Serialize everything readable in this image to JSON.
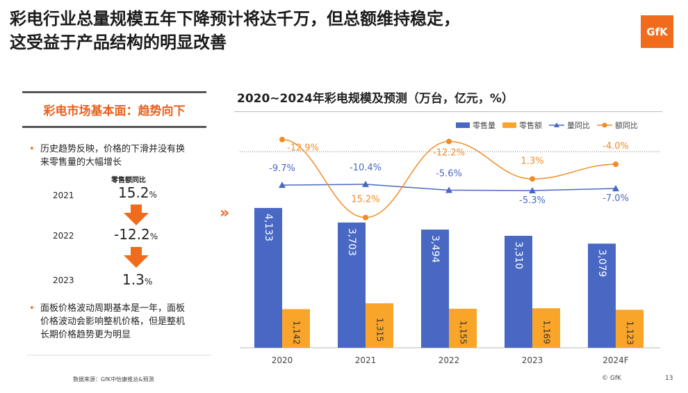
{
  "title": {
    "line1": "彩电行业总量规模五年下降预计将达千万，但总额维持稳定，",
    "line2": "这受益于产品结构的明显改善"
  },
  "logo": "GfK",
  "panel": {
    "title": "彩电市场基本面：趋势向下",
    "bullet1_line1": "历史趋势反映，价格的下滑并没有换",
    "bullet1_line2": "来零售量的大幅增长",
    "yoy_header": "零售额同比",
    "years": [
      {
        "year": "2021",
        "value": "15.2",
        "unit": "%"
      },
      {
        "year": "2022",
        "value": "-12.2",
        "unit": "%"
      },
      {
        "year": "2023",
        "value": "1.3",
        "unit": "%"
      }
    ],
    "bullet2_line1": "面板价格波动周期基本是一年，面板",
    "bullet2_line2": "价格波动会影响整机价格，但是整机",
    "bullet2_line3": "长期价格趋势更为明显"
  },
  "chart_title": "2020~2024年彩电规模及预测（万台，亿元，%）",
  "legend": {
    "vol": "零售量",
    "amt": "零售额",
    "vol_yoy": "量同比",
    "amt_yoy": "额同比"
  },
  "chart_data": {
    "type": "bar",
    "categories": [
      "2020",
      "2021",
      "2022",
      "2023",
      "2024F"
    ],
    "series": [
      {
        "name": "零售量",
        "values": [
          4133,
          3703,
          3494,
          3310,
          3079
        ],
        "labels": [
          "4,133",
          "3,703",
          "3,494",
          "3,310",
          "3,079"
        ]
      },
      {
        "name": "零售额",
        "values": [
          1142,
          1315,
          1155,
          1169,
          1123
        ],
        "labels": [
          "1,142",
          "1,315",
          "1,155",
          "1,169",
          "1,123"
        ]
      },
      {
        "name": "量同比",
        "type": "line",
        "values": [
          -9.7,
          -10.4,
          -5.6,
          -5.3,
          -7.0
        ],
        "labels": [
          "-9.7%",
          "-10.4%",
          "-5.6%",
          "-5.3%",
          "-7.0%"
        ]
      },
      {
        "name": "额同比",
        "type": "line",
        "values": [
          -12.9,
          15.2,
          -12.2,
          1.3,
          -4.0
        ],
        "labels": [
          "-12.9%",
          "15.2%",
          "-12.2%",
          "1.3%",
          "-4.0%"
        ]
      }
    ],
    "colors": {
      "vol": "#4868c4",
      "amt": "#f9a52a",
      "vol_yoy": "#4868c4",
      "amt_yoy": "#f28b24"
    },
    "legend_position": "top-right"
  },
  "footer": {
    "source": "数据来源：GfK中怡康推总&预测",
    "copyright": "© GfK",
    "page": "13"
  }
}
